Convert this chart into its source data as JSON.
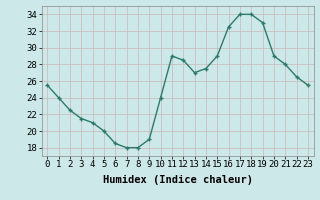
{
  "x": [
    0,
    1,
    2,
    3,
    4,
    5,
    6,
    7,
    8,
    9,
    10,
    11,
    12,
    13,
    14,
    15,
    16,
    17,
    18,
    19,
    20,
    21,
    22,
    23
  ],
  "y": [
    25.5,
    24,
    22.5,
    21.5,
    21,
    20,
    18.5,
    18,
    18,
    19,
    24,
    29,
    28.5,
    27,
    27.5,
    29,
    32.5,
    34,
    34,
    33,
    29,
    28,
    26.5,
    25.5
  ],
  "line_color": "#2d7a6a",
  "marker_color": "#2d7a6a",
  "bg_color": "#cce8e8",
  "grid_color_major": "#c8b8b8",
  "grid_color_minor": "#ddd0d0",
  "xlabel": "Humidex (Indice chaleur)",
  "ylim": [
    17,
    35
  ],
  "xlim": [
    -0.5,
    23.5
  ],
  "yticks": [
    18,
    20,
    22,
    24,
    26,
    28,
    30,
    32,
    34
  ],
  "xticks": [
    0,
    1,
    2,
    3,
    4,
    5,
    6,
    7,
    8,
    9,
    10,
    11,
    12,
    13,
    14,
    15,
    16,
    17,
    18,
    19,
    20,
    21,
    22,
    23
  ],
  "xlabel_fontsize": 7.5,
  "tick_fontsize": 6.5,
  "line_width": 1.0,
  "marker_size": 2.5
}
